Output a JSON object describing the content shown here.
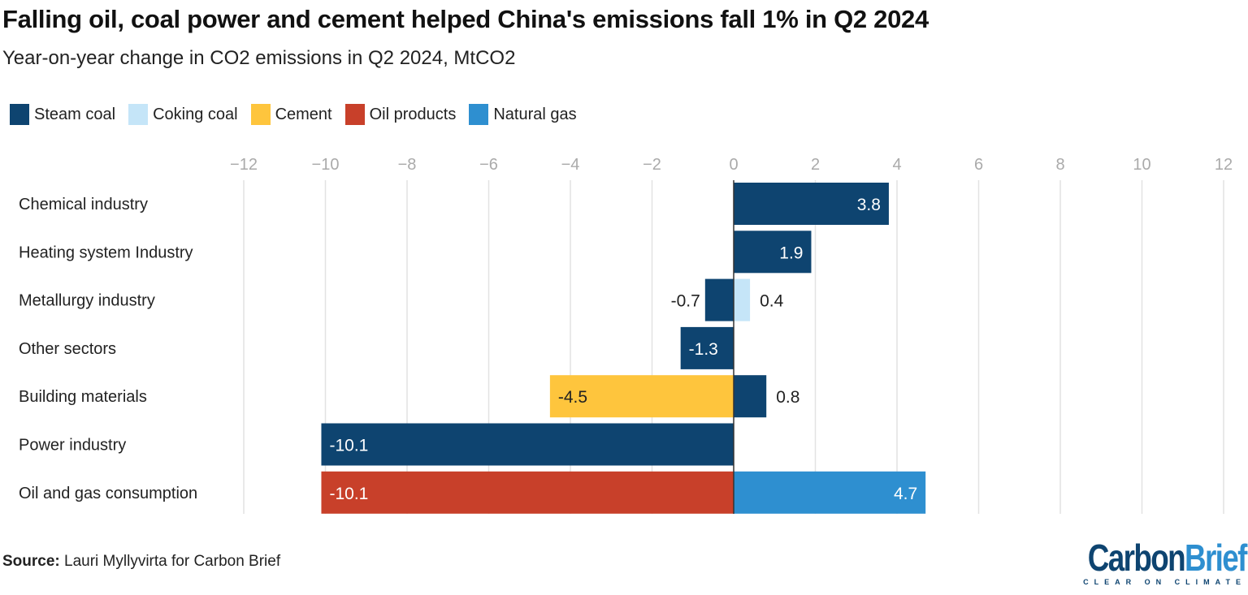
{
  "title": "Falling oil, coal power and cement helped China's emissions fall 1% in Q2 2024",
  "subtitle": "Year-on-year change in CO2 emissions in Q2 2024, MtCO2",
  "source_label": "Source:",
  "source_text": " Lauri Myllyvirta for Carbon Brief",
  "logo": {
    "part1": "Carbon",
    "part2": "Brief",
    "tagline": "CLEAR ON CLIMATE",
    "color1": "#0e4470",
    "color2": "#2e8fd0"
  },
  "chart_data": {
    "type": "bar",
    "orientation": "horizontal",
    "stacked": true,
    "title": "Falling oil, coal power and cement helped China's emissions fall 1% in Q2 2024",
    "subtitle": "Year-on-year change in CO2 emissions in Q2 2024, MtCO2",
    "xlim": [
      -12,
      12
    ],
    "xticks": [
      -12,
      -10,
      -8,
      -6,
      -4,
      -2,
      0,
      2,
      4,
      6,
      8,
      10,
      12
    ],
    "grid": true,
    "legend_position": "top-left",
    "categories": [
      "Chemical industry",
      "Heating system Industry",
      "Metallurgy industry",
      "Other sectors",
      "Building materials",
      "Power industry",
      "Oil and gas consumption"
    ],
    "series": [
      {
        "name": "Steam coal",
        "color": "#0e4470",
        "values": [
          3.8,
          1.9,
          -0.7,
          -1.3,
          0.8,
          -10.1,
          null
        ]
      },
      {
        "name": "Coking coal",
        "color": "#c5e5f8",
        "values": [
          null,
          null,
          0.4,
          null,
          null,
          null,
          null
        ]
      },
      {
        "name": "Cement",
        "color": "#fec53d",
        "values": [
          null,
          null,
          null,
          null,
          -4.5,
          null,
          null
        ]
      },
      {
        "name": "Oil products",
        "color": "#c8402a",
        "values": [
          null,
          null,
          null,
          null,
          null,
          null,
          -10.1
        ]
      },
      {
        "name": "Natural gas",
        "color": "#2e8fd0",
        "values": [
          null,
          null,
          null,
          null,
          null,
          null,
          4.7
        ]
      }
    ]
  }
}
